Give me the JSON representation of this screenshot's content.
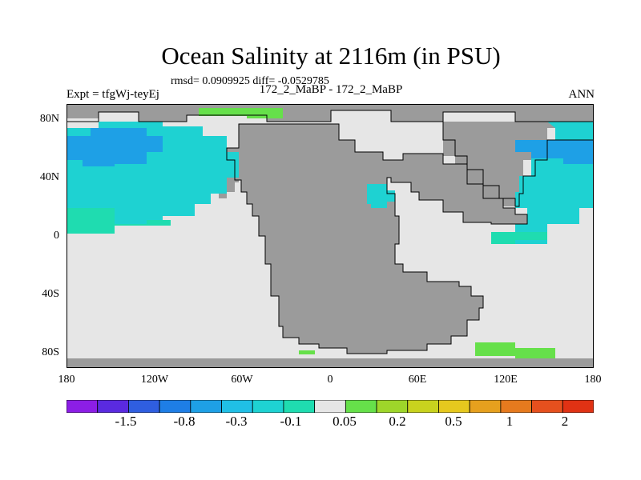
{
  "title": "Ocean Salinity at 2116m (in PSU)",
  "stats": "rmsd= 0.0909925 diff= -0.0529785",
  "left_label": "Expt = tfgWj-teyEj",
  "center_label": "172_2_MaBP - 172_2_MaBP",
  "right_label": "ANN",
  "lat_labels": [
    "80N",
    "40N",
    "0",
    "40S",
    "80S"
  ],
  "lon_labels": [
    "180",
    "120W",
    "60W",
    "0",
    "60E",
    "120E",
    "180"
  ],
  "colorbar": {
    "colors": [
      "#8c1ee6",
      "#5a2ae0",
      "#2f5ee0",
      "#1e7ee6",
      "#1ea0e6",
      "#20bfe6",
      "#1ed2d2",
      "#1fdcb0",
      "#e6e6e6",
      "#66e04a",
      "#9ed62a",
      "#c8d21e",
      "#e6c81e",
      "#e6a01e",
      "#e67a1e",
      "#e6501e",
      "#e03214"
    ],
    "labels": [
      "-1.5",
      "-0.8",
      "-0.3",
      "-0.1",
      "0.05",
      "0.2",
      "0.5",
      "1",
      "2"
    ]
  },
  "map_colors": {
    "land": "#9b9b9b",
    "ocean_neutral": "#e6e6e6",
    "cyan": "#1ed2d2",
    "blue": "#1ea0e6",
    "teal": "#1fdcb0",
    "green": "#66e04a"
  }
}
